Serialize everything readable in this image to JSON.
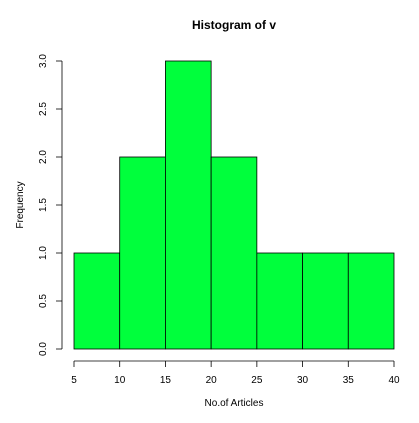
{
  "chart_data": {
    "type": "bar",
    "subtype": "histogram",
    "title": "Histogram of v",
    "xlabel": "No.of Articles",
    "ylabel": "Frequency",
    "bins": [
      {
        "start": 5,
        "end": 10,
        "count": 1
      },
      {
        "start": 10,
        "end": 15,
        "count": 2
      },
      {
        "start": 15,
        "end": 20,
        "count": 3
      },
      {
        "start": 20,
        "end": 25,
        "count": 2
      },
      {
        "start": 25,
        "end": 30,
        "count": 1
      },
      {
        "start": 30,
        "end": 35,
        "count": 1
      },
      {
        "start": 35,
        "end": 40,
        "count": 1
      }
    ],
    "xlim": [
      5,
      40
    ],
    "ylim": [
      0,
      3
    ],
    "x_ticks": [
      "5",
      "10",
      "15",
      "20",
      "25",
      "30",
      "35",
      "40"
    ],
    "y_ticks": [
      "0.0",
      "0.5",
      "1.0",
      "1.5",
      "2.0",
      "2.5",
      "3.0"
    ],
    "bar_color": "#00ff3c",
    "grid": false,
    "legend": "none"
  }
}
